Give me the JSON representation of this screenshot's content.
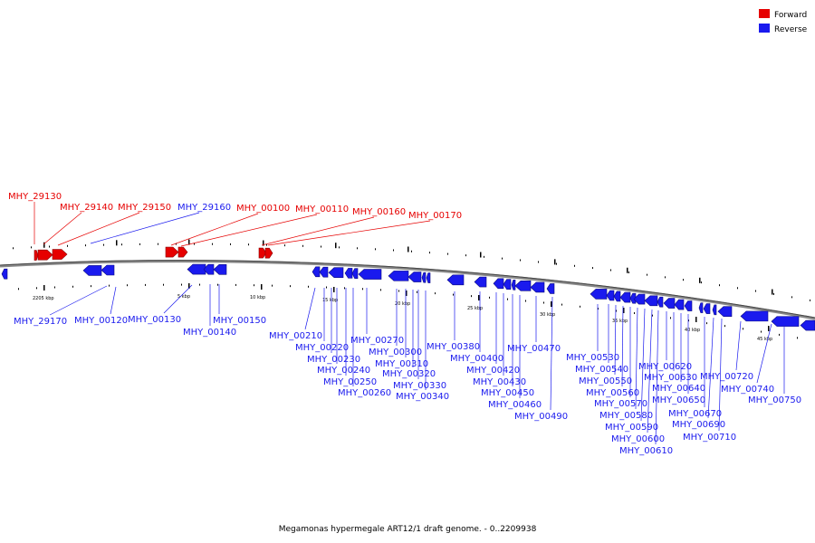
{
  "legend": {
    "forward_label": "Forward",
    "reverse_label": "Reverse",
    "forward_color": "#e60000",
    "reverse_color": "#1a1aee"
  },
  "caption": "Megamonas hypermegale ART12/1 draft genome. - 0..2209938",
  "scale_labels": [
    "2205 kbp",
    "5 kbp",
    "10 kbp",
    "15 kbp",
    "20 kbp",
    "25 kbp",
    "30 kbp",
    "35 kbp",
    "40 kbp",
    "45 kbp"
  ],
  "forward_genes": [
    "MHY_29130",
    "MHY_29140",
    "MHY_29150",
    "MHY_00100",
    "MHY_00110",
    "MHY_00160",
    "MHY_00170"
  ],
  "reverse_genes_above": [
    "MHY_29160"
  ],
  "reverse_genes": [
    "MHY_29170",
    "MHY_00120",
    "MHY_00130",
    "MHY_00140",
    "MHY_00150",
    "MHY_00210",
    "MHY_00220",
    "MHY_00230",
    "MHY_00240",
    "MHY_00250",
    "MHY_00260",
    "MHY_00270",
    "MHY_00300",
    "MHY_00310",
    "MHY_00320",
    "MHY_00330",
    "MHY_00340",
    "MHY_00380",
    "MHY_00400",
    "MHY_00420",
    "MHY_00430",
    "MHY_00450",
    "MHY_00460",
    "MHY_00470",
    "MHY_00490",
    "MHY_00530",
    "MHY_00540",
    "MHY_00550",
    "MHY_00560",
    "MHY_00570",
    "MHY_00580",
    "MHY_00590",
    "MHY_00600",
    "MHY_00610",
    "MHY_00620",
    "MHY_00630",
    "MHY_00640",
    "MHY_00650",
    "MHY_00670",
    "MHY_00690",
    "MHY_00710",
    "MHY_00720",
    "MHY_00740",
    "MHY_00750"
  ]
}
